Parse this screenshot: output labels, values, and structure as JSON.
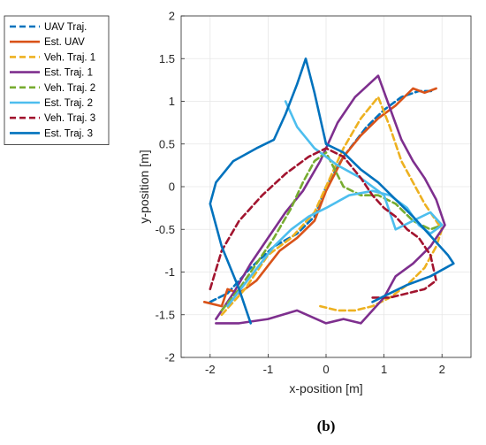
{
  "caption": "(b)",
  "chart_data": {
    "type": "line",
    "title": "",
    "xlabel": "x-position [m]",
    "ylabel": "y-position [m]",
    "xlim": [
      -2.5,
      2.5
    ],
    "ylim": [
      -2,
      2
    ],
    "xticks": [
      -2,
      -1,
      0,
      1,
      2
    ],
    "yticks": [
      -2,
      -1.5,
      -1,
      -0.5,
      0,
      0.5,
      1,
      1.5,
      2
    ],
    "xtick_labels": [
      "-2",
      "-1",
      "0",
      "1",
      "2"
    ],
    "ytick_labels": [
      "-2",
      "-1.5",
      "-1",
      "-0.5",
      "0",
      "0.5",
      "1",
      "1.5",
      "2"
    ],
    "grid": true,
    "legend_position": "outside-top-left",
    "series": [
      {
        "name": "UAV Traj.",
        "color": "#0072BD",
        "style": "dashed",
        "x": [
          -2.0,
          -1.7,
          -1.3,
          -0.9,
          -0.5,
          -0.2,
          0.0,
          0.3,
          0.7,
          1.0,
          1.3,
          1.6,
          1.85
        ],
        "y": [
          -1.35,
          -1.25,
          -0.95,
          -0.7,
          -0.55,
          -0.35,
          0.0,
          0.35,
          0.7,
          0.9,
          1.05,
          1.12,
          1.12
        ]
      },
      {
        "name": "Est. UAV",
        "color": "#D95319",
        "style": "solid",
        "x": [
          -2.1,
          -1.8,
          -1.7,
          -1.5,
          -1.2,
          -0.8,
          -0.5,
          -0.2,
          0.0,
          0.3,
          0.6,
          0.9,
          1.2,
          1.5,
          1.7,
          1.9
        ],
        "y": [
          -1.35,
          -1.4,
          -1.2,
          -1.25,
          -1.1,
          -0.75,
          -0.6,
          -0.4,
          -0.05,
          0.35,
          0.6,
          0.8,
          0.95,
          1.15,
          1.1,
          1.15
        ]
      },
      {
        "name": "Veh. Traj. 1",
        "color": "#EDB120",
        "style": "dashed",
        "x": [
          -1.8,
          -1.4,
          -1.0,
          -0.6,
          -0.2,
          0.0,
          0.3,
          0.6,
          0.9,
          1.1,
          1.3,
          1.5,
          1.7,
          1.9,
          2.0,
          1.9,
          1.7,
          1.4,
          1.1,
          0.8,
          0.5,
          0.2,
          -0.1
        ],
        "y": [
          -1.5,
          -1.2,
          -0.8,
          -0.6,
          -0.3,
          0.0,
          0.45,
          0.8,
          1.05,
          0.7,
          0.3,
          0.05,
          -0.2,
          -0.4,
          -0.5,
          -0.7,
          -0.95,
          -1.15,
          -1.3,
          -1.4,
          -1.45,
          -1.45,
          -1.4
        ]
      },
      {
        "name": "Est. Traj. 1",
        "color": "#7E2F8E",
        "style": "solid",
        "x": [
          -1.9,
          -1.6,
          -1.3,
          -1.0,
          -0.7,
          -0.4,
          -0.1,
          0.2,
          0.5,
          0.9,
          1.3,
          1.5,
          1.7,
          1.9,
          2.05,
          1.8,
          1.5,
          1.2,
          1.0,
          0.8,
          0.6,
          0.3,
          0.0,
          -0.5,
          -1.0,
          -1.5,
          -1.9
        ],
        "y": [
          -1.55,
          -1.25,
          -0.9,
          -0.6,
          -0.3,
          -0.05,
          0.3,
          0.75,
          1.05,
          1.3,
          0.55,
          0.3,
          0.1,
          -0.15,
          -0.45,
          -0.7,
          -0.9,
          -1.05,
          -1.3,
          -1.45,
          -1.6,
          -1.55,
          -1.6,
          -1.45,
          -1.55,
          -1.6,
          -1.6
        ]
      },
      {
        "name": "Veh. Traj. 2",
        "color": "#77AC30",
        "style": "dashed",
        "x": [
          -1.8,
          -1.5,
          -1.2,
          -0.9,
          -0.6,
          -0.4,
          -0.2,
          0.0,
          0.3,
          0.6,
          0.9,
          1.2,
          1.5,
          1.8,
          2.0
        ],
        "y": [
          -1.45,
          -1.2,
          -0.9,
          -0.6,
          -0.25,
          0.05,
          0.3,
          0.4,
          0.0,
          -0.1,
          -0.1,
          -0.2,
          -0.4,
          -0.5,
          -0.45
        ]
      },
      {
        "name": "Est. Traj. 2",
        "color": "#4DBEEE",
        "style": "solid",
        "x": [
          -1.7,
          -1.3,
          -0.9,
          -0.6,
          -0.3,
          0.0,
          0.4,
          0.8,
          1.1,
          1.4,
          1.6,
          1.8,
          2.0,
          1.8,
          1.5,
          1.2,
          1.0,
          0.6,
          0.2,
          -0.2,
          -0.5,
          -0.7
        ],
        "y": [
          -1.4,
          -1.05,
          -0.7,
          -0.5,
          -0.35,
          -0.25,
          -0.1,
          -0.05,
          -0.1,
          -0.25,
          -0.45,
          -0.55,
          -0.45,
          -0.3,
          -0.4,
          -0.5,
          -0.1,
          0.1,
          0.25,
          0.45,
          0.7,
          1.0
        ]
      },
      {
        "name": "Veh. Traj. 3",
        "color": "#A2142F",
        "style": "dashed",
        "x": [
          -2.0,
          -1.8,
          -1.5,
          -1.1,
          -0.7,
          -0.3,
          0.0,
          0.3,
          0.6,
          0.8,
          1.0,
          1.2,
          1.4,
          1.6,
          1.8,
          1.9,
          1.7,
          1.4,
          1.1,
          0.8
        ],
        "y": [
          -1.2,
          -0.75,
          -0.4,
          -0.1,
          0.15,
          0.35,
          0.45,
          0.35,
          0.1,
          -0.1,
          -0.25,
          -0.35,
          -0.5,
          -0.6,
          -0.8,
          -1.1,
          -1.2,
          -1.25,
          -1.3,
          -1.3
        ]
      },
      {
        "name": "Est. Traj. 3",
        "color": "#0072BD",
        "style": "solid",
        "x": [
          -1.3,
          -1.5,
          -1.8,
          -2.0,
          -1.9,
          -1.6,
          -1.2,
          -0.9,
          -0.7,
          -0.5,
          -0.35,
          -0.2,
          0.0,
          0.3,
          0.6,
          0.9,
          1.2,
          1.5,
          1.7,
          1.9,
          2.1,
          2.2,
          1.8,
          1.4,
          1.1,
          0.8
        ],
        "y": [
          -1.6,
          -1.2,
          -0.7,
          -0.2,
          0.05,
          0.3,
          0.45,
          0.55,
          0.85,
          1.2,
          1.5,
          1.1,
          0.5,
          0.4,
          0.2,
          0.05,
          -0.15,
          -0.35,
          -0.5,
          -0.65,
          -0.8,
          -0.9,
          -1.05,
          -1.15,
          -1.25,
          -1.35
        ]
      }
    ]
  }
}
